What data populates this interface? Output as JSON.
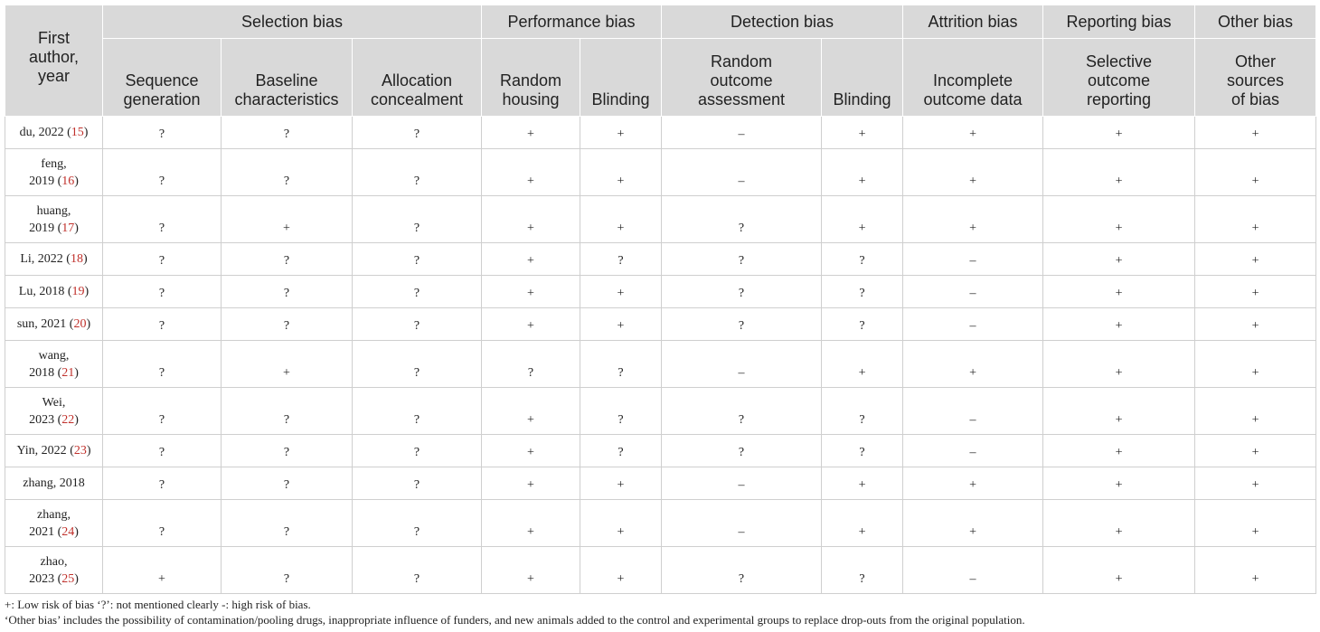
{
  "header": {
    "first_col": [
      "First",
      "author,",
      "year"
    ],
    "groups": [
      {
        "label": "Selection bias",
        "span": 3
      },
      {
        "label": "Performance bias",
        "span": 2
      },
      {
        "label": "Detection bias",
        "span": 2
      },
      {
        "label": "Attrition bias",
        "span": 1
      },
      {
        "label": "Reporting bias",
        "span": 1
      },
      {
        "label": "Other bias",
        "span": 1
      }
    ],
    "columns": [
      [
        "Sequence",
        "generation"
      ],
      [
        "Baseline",
        "characteristics"
      ],
      [
        "Allocation",
        "concealment"
      ],
      [
        "Random",
        "housing"
      ],
      [
        "Blinding"
      ],
      [
        "Random",
        "outcome",
        "assessment"
      ],
      [
        "Blinding"
      ],
      [
        "Incomplete",
        "outcome data"
      ],
      [
        "Selective",
        "outcome",
        "reporting"
      ],
      [
        "Other",
        "sources",
        "of bias"
      ]
    ]
  },
  "rows": [
    {
      "author": [
        "du, 2022 "
      ],
      "ref": "15",
      "values": [
        "?",
        "?",
        "?",
        "+",
        "+",
        "–",
        "+",
        "+",
        "+",
        "+"
      ]
    },
    {
      "author": [
        "feng,",
        "2019 "
      ],
      "ref": "16",
      "values": [
        "?",
        "?",
        "?",
        "+",
        "+",
        "–",
        "+",
        "+",
        "+",
        "+"
      ]
    },
    {
      "author": [
        "huang,",
        "2019 "
      ],
      "ref": "17",
      "values": [
        "?",
        "+",
        "?",
        "+",
        "+",
        "?",
        "+",
        "+",
        "+",
        "+"
      ]
    },
    {
      "author": [
        "Li, 2022 "
      ],
      "ref": "18",
      "values": [
        "?",
        "?",
        "?",
        "+",
        "?",
        "?",
        "?",
        "–",
        "+",
        "+"
      ]
    },
    {
      "author": [
        "Lu, 2018 "
      ],
      "ref": "19",
      "values": [
        "?",
        "?",
        "?",
        "+",
        "+",
        "?",
        "?",
        "–",
        "+",
        "+"
      ]
    },
    {
      "author": [
        "sun, 2021 "
      ],
      "ref": "20",
      "values": [
        "?",
        "?",
        "?",
        "+",
        "+",
        "?",
        "?",
        "–",
        "+",
        "+"
      ]
    },
    {
      "author": [
        "wang,",
        "2018 "
      ],
      "ref": "21",
      "values": [
        "?",
        "+",
        "?",
        "?",
        "?",
        "–",
        "+",
        "+",
        "+",
        "+"
      ]
    },
    {
      "author": [
        "Wei,",
        "2023 "
      ],
      "ref": "22",
      "values": [
        "?",
        "?",
        "?",
        "+",
        "?",
        "?",
        "?",
        "–",
        "+",
        "+"
      ]
    },
    {
      "author": [
        "Yin, 2022 "
      ],
      "ref": "23",
      "values": [
        "?",
        "?",
        "?",
        "+",
        "?",
        "?",
        "?",
        "–",
        "+",
        "+"
      ]
    },
    {
      "author": [
        "zhang, 2018"
      ],
      "ref": "",
      "values": [
        "?",
        "?",
        "?",
        "+",
        "+",
        "–",
        "+",
        "+",
        "+",
        "+"
      ]
    },
    {
      "author": [
        "zhang,",
        "2021 "
      ],
      "ref": "24",
      "values": [
        "?",
        "?",
        "?",
        "+",
        "+",
        "–",
        "+",
        "+",
        "+",
        "+"
      ]
    },
    {
      "author": [
        "zhao,",
        "2023 "
      ],
      "ref": "25",
      "values": [
        "+",
        "?",
        "?",
        "+",
        "+",
        "?",
        "?",
        "–",
        "+",
        "+"
      ]
    }
  ],
  "footnotes": [
    "+: Low risk of bias ‘?’: not mentioned clearly -: high risk of bias.",
    "‘Other bias’ includes the possibility of contamination/pooling drugs, inappropriate influence of funders, and new animals added to the control and experimental groups to replace drop-outs from the original population."
  ],
  "colors": {
    "header_bg": "#d9d9d9",
    "ref_link": "#c0302b",
    "grid": "#cfcfcf"
  }
}
